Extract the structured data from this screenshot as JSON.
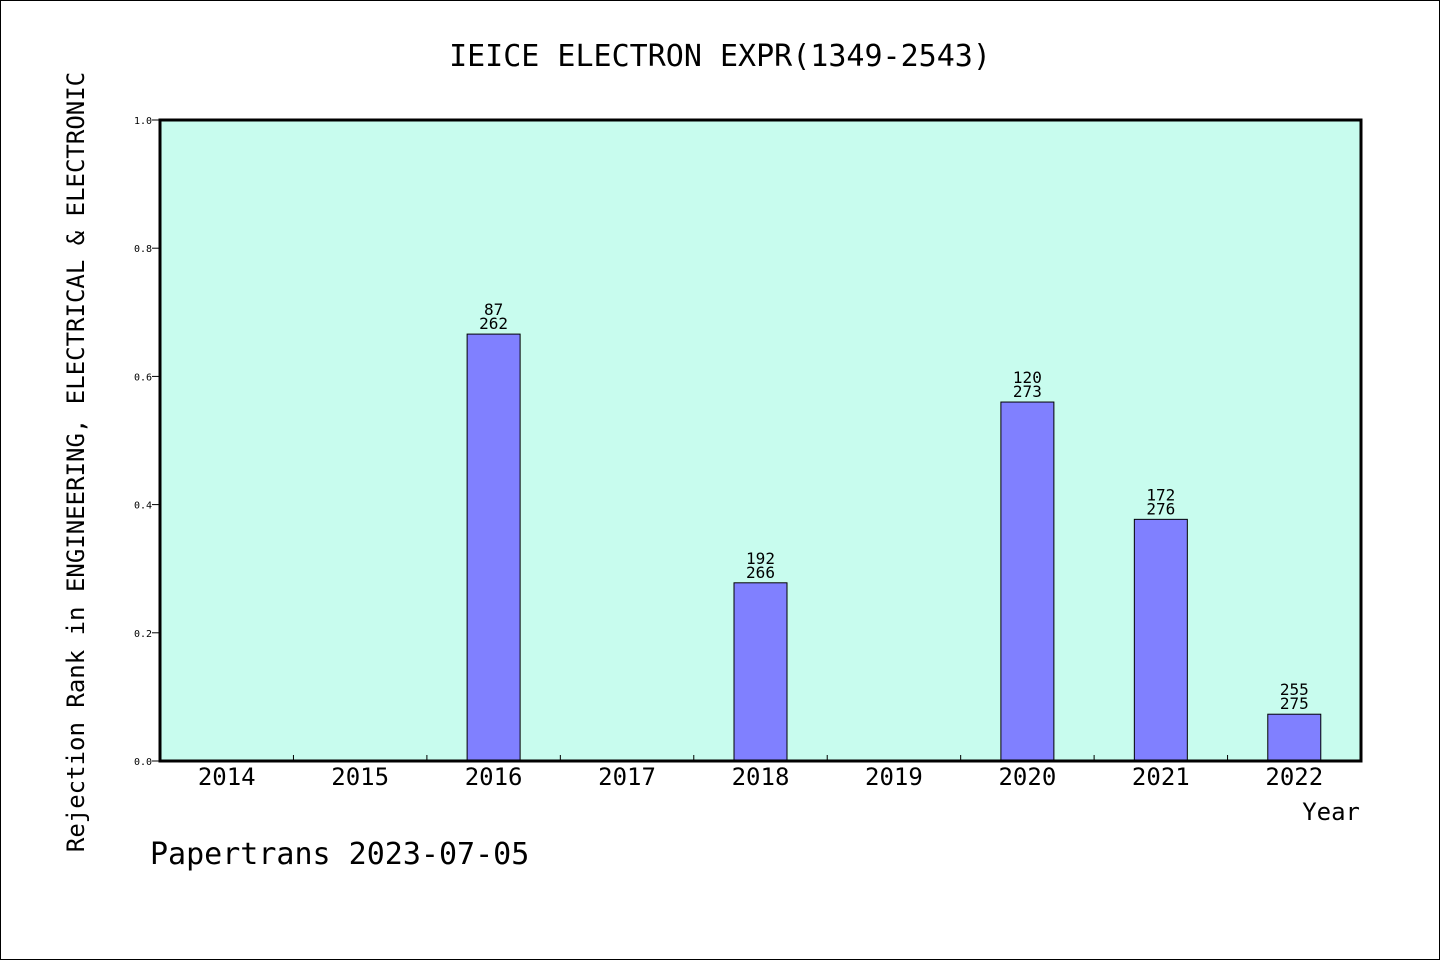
{
  "chart_data": {
    "type": "bar",
    "title": "IEICE ELECTRON EXPR(1349-2543)",
    "xlabel": "Year",
    "ylabel": "Rejection Rank in ENGINEERING, ELECTRICAL & ELECTRONIC",
    "ylim": [
      0,
      1.0
    ],
    "yticks": [
      "0.0",
      "0.2",
      "0.4",
      "0.6",
      "0.8",
      "1.0"
    ],
    "categories": [
      "2014",
      "2015",
      "2016",
      "2017",
      "2018",
      "2019",
      "2020",
      "2021",
      "2022"
    ],
    "values": [
      null,
      null,
      0.666,
      null,
      0.278,
      null,
      0.56,
      0.377,
      0.073
    ],
    "labels_top": [
      "",
      "",
      "87",
      "",
      "192",
      "",
      "120",
      "172",
      "255"
    ],
    "labels_bottom": [
      "",
      "",
      "262",
      "",
      "266",
      "",
      "273",
      "276",
      "275"
    ],
    "footer": "Papertrans 2023-07-05",
    "colors": {
      "plot_bg": "#c8fcee",
      "bar": "#8080ff",
      "axis": "#000000"
    }
  }
}
